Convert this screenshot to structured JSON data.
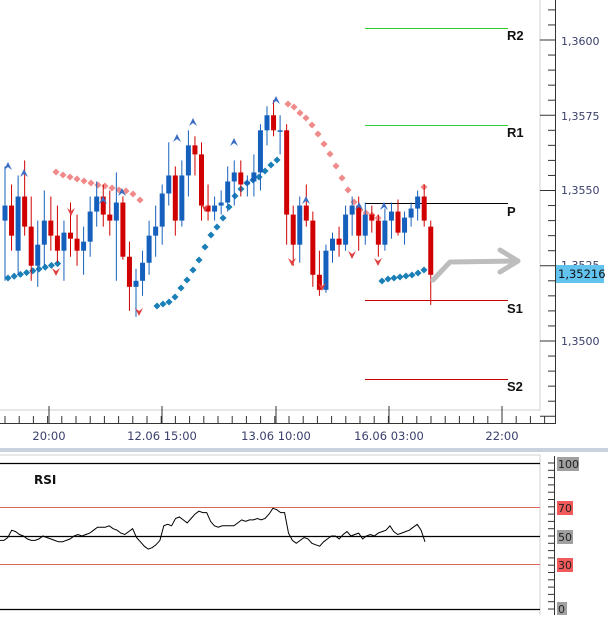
{
  "chart_data": [
    {
      "type": "candlestick",
      "title": "",
      "instrument_hint": "price chart with pivot points, parabolic SAR and fractals",
      "y_axis": {
        "ticks": [
          "1,3600",
          "1,3575",
          "1,3550",
          "1,3525",
          "1,3500"
        ],
        "tick_values": [
          1.36,
          1.3575,
          1.355,
          1.3525,
          1.35
        ],
        "range": [
          1.3462,
          1.3613
        ],
        "current_price_label": "1,35216",
        "current_price": 1.35216
      },
      "x_axis": {
        "ticks": [
          "20:00",
          "12.06 15:00",
          "13.06 10:00",
          "16.06 03:00",
          "22:00"
        ]
      },
      "pivot_levels": [
        {
          "name": "R2",
          "value": 1.3603,
          "color": "#33cc33"
        },
        {
          "name": "R1",
          "value": 1.3572,
          "color": "#33cc33"
        },
        {
          "name": "P",
          "value": 1.3545,
          "color": "#000000"
        },
        {
          "name": "S1",
          "value": 1.3512,
          "color": "#cc0000"
        },
        {
          "name": "S2",
          "value": 1.3487,
          "color": "#cc0000"
        }
      ],
      "candles_ohlc_approx": [
        [
          1.354,
          1.3558,
          1.352,
          1.3545
        ],
        [
          1.3545,
          1.3552,
          1.353,
          1.3535
        ],
        [
          1.353,
          1.3555,
          1.3522,
          1.3548
        ],
        [
          1.3548,
          1.356,
          1.3535,
          1.3538
        ],
        [
          1.3538,
          1.3548,
          1.352,
          1.3525
        ],
        [
          1.3525,
          1.354,
          1.3518,
          1.3532
        ],
        [
          1.3532,
          1.355,
          1.3525,
          1.354
        ],
        [
          1.354,
          1.3548,
          1.353,
          1.3535
        ],
        [
          1.3535,
          1.3545,
          1.3526,
          1.353
        ],
        [
          1.353,
          1.354,
          1.352,
          1.3536
        ],
        [
          1.3536,
          1.3546,
          1.3528,
          1.3534
        ],
        [
          1.3534,
          1.3542,
          1.3525,
          1.353
        ],
        [
          1.353,
          1.3538,
          1.3522,
          1.3533
        ],
        [
          1.3533,
          1.3548,
          1.3528,
          1.3543
        ],
        [
          1.3543,
          1.3553,
          1.3538,
          1.3548
        ],
        [
          1.3548,
          1.3552,
          1.3538,
          1.3542
        ],
        [
          1.3542,
          1.355,
          1.3535,
          1.354
        ],
        [
          1.354,
          1.3556,
          1.352,
          1.3546
        ],
        [
          1.3546,
          1.3548,
          1.3527,
          1.3528
        ],
        [
          1.3528,
          1.3533,
          1.351,
          1.3518
        ],
        [
          1.3518,
          1.3524,
          1.3508,
          1.352
        ],
        [
          1.352,
          1.353,
          1.3515,
          1.3526
        ],
        [
          1.3526,
          1.354,
          1.3522,
          1.3535
        ],
        [
          1.3535,
          1.3545,
          1.3528,
          1.3538
        ],
        [
          1.3538,
          1.3552,
          1.3532,
          1.3549
        ],
        [
          1.3549,
          1.3566,
          1.3545,
          1.3555
        ],
        [
          1.3555,
          1.3558,
          1.3535,
          1.354
        ],
        [
          1.354,
          1.356,
          1.3538,
          1.3555
        ],
        [
          1.3555,
          1.357,
          1.3548,
          1.3565
        ],
        [
          1.3565,
          1.3568,
          1.3555,
          1.3562
        ],
        [
          1.3562,
          1.3566,
          1.354,
          1.3545
        ],
        [
          1.3545,
          1.3552,
          1.354,
          1.3543
        ],
        [
          1.3543,
          1.3548,
          1.354,
          1.3545
        ],
        [
          1.3545,
          1.355,
          1.3542,
          1.3546
        ],
        [
          1.3546,
          1.3558,
          1.3543,
          1.3553
        ],
        [
          1.3553,
          1.356,
          1.3545,
          1.3556
        ],
        [
          1.3556,
          1.356,
          1.3548,
          1.3552
        ],
        [
          1.3552,
          1.3555,
          1.3548,
          1.3553
        ],
        [
          1.3553,
          1.3562,
          1.3548,
          1.3556
        ],
        [
          1.3556,
          1.3572,
          1.355,
          1.357
        ],
        [
          1.357,
          1.3578,
          1.3565,
          1.3575
        ],
        [
          1.3575,
          1.358,
          1.3568,
          1.357
        ],
        [
          1.357,
          1.3575,
          1.3562,
          1.357
        ],
        [
          1.357,
          1.3572,
          1.3532,
          1.3542
        ],
        [
          1.3542,
          1.3545,
          1.3525,
          1.3532
        ],
        [
          1.3532,
          1.3548,
          1.3526,
          1.3545
        ],
        [
          1.3545,
          1.3552,
          1.3538,
          1.354
        ],
        [
          1.354,
          1.3543,
          1.3518,
          1.3522
        ],
        [
          1.3522,
          1.353,
          1.3515,
          1.3517
        ],
        [
          1.3517,
          1.3532,
          1.3516,
          1.353
        ],
        [
          1.353,
          1.3536,
          1.3526,
          1.3534
        ],
        [
          1.3534,
          1.3538,
          1.3528,
          1.3532
        ],
        [
          1.3532,
          1.3545,
          1.353,
          1.3542
        ],
        [
          1.3542,
          1.3548,
          1.3535,
          1.3545
        ],
        [
          1.3545,
          1.3548,
          1.353,
          1.3535
        ],
        [
          1.3535,
          1.3546,
          1.3532,
          1.3542
        ],
        [
          1.3542,
          1.3545,
          1.3536,
          1.354
        ],
        [
          1.354,
          1.3542,
          1.3528,
          1.3532
        ],
        [
          1.3532,
          1.3544,
          1.353,
          1.354
        ],
        [
          1.354,
          1.3546,
          1.3534,
          1.3543
        ],
        [
          1.3543,
          1.3547,
          1.3535,
          1.3536
        ],
        [
          1.3536,
          1.3543,
          1.3532,
          1.3541
        ],
        [
          1.3541,
          1.3546,
          1.3538,
          1.3544
        ],
        [
          1.3544,
          1.355,
          1.354,
          1.3548
        ],
        [
          1.3548,
          1.3552,
          1.3538,
          1.354
        ],
        [
          1.3538,
          1.354,
          1.3512,
          1.3522
        ]
      ],
      "series_colors": {
        "bull": "#1560bd",
        "bear": "#d00000",
        "sar_up": "#1b7fb7",
        "sar_down": "#f08a8a"
      },
      "annotation": "grey forecast arrow pointing right from last candle"
    },
    {
      "type": "line",
      "title": "RSI",
      "y_axis": {
        "ticks": [
          "100",
          "70",
          "50",
          "30",
          "0"
        ],
        "range": [
          0,
          100
        ]
      },
      "levels": [
        {
          "value": 100,
          "color": "#000000"
        },
        {
          "value": 70,
          "color": "#d86a5a"
        },
        {
          "value": 50,
          "color": "#000000"
        },
        {
          "value": 30,
          "color": "#d86a5a"
        },
        {
          "value": 0,
          "color": "#000000"
        }
      ],
      "values": [
        47,
        47,
        49,
        54,
        53,
        51,
        50,
        48,
        47,
        47,
        48,
        50,
        49,
        48,
        47,
        46,
        46,
        47,
        48,
        50,
        51,
        50,
        51,
        52,
        54,
        56,
        56,
        56,
        57,
        55,
        54,
        52,
        51,
        53,
        55,
        49,
        46,
        43,
        41,
        42,
        44,
        47,
        57,
        58,
        57,
        62,
        63,
        61,
        59,
        62,
        65,
        67,
        66,
        66,
        60,
        57,
        56,
        57,
        57,
        57,
        57,
        59,
        61,
        60,
        61,
        61,
        62,
        61,
        62,
        65,
        69,
        68,
        66,
        66,
        52,
        47,
        45,
        47,
        49,
        48,
        45,
        44,
        43,
        46,
        48,
        50,
        50,
        48,
        51,
        53,
        50,
        51,
        52,
        48,
        50,
        51,
        50,
        52,
        53,
        54,
        57,
        53,
        51,
        52,
        53,
        54,
        56,
        58,
        54,
        46
      ]
    }
  ],
  "main": {
    "price_axis": [
      "1,3600",
      "1,3575",
      "1,3550",
      "1,3525",
      "1,3500"
    ],
    "current_price": "1,35216",
    "time_axis": [
      "20:00",
      "12.06 15:00",
      "13.06 10:00",
      "16.06 03:00",
      "22:00"
    ],
    "pivots": {
      "r2": "R2",
      "r1": "R1",
      "p": "P",
      "s1": "S1",
      "s2": "S2"
    }
  },
  "rsi": {
    "title": "RSI",
    "levels": {
      "l100": "100",
      "l70": "70",
      "l50": "50",
      "l30": "30",
      "l0": "0"
    }
  },
  "colors": {
    "bull": "#1560bd",
    "bear": "#d00000",
    "sar_up": "#1b7fb7",
    "sar_down": "#f08a8a",
    "resistance": "#33cc33",
    "support": "#cc0000",
    "current_price_bg": "#62c3ef",
    "level_bg_grey": "#a0a0a0",
    "level_bg_red": "#f05a5a",
    "separator": "#c8d3de",
    "forecast_arrow": "#bdbdbd"
  }
}
